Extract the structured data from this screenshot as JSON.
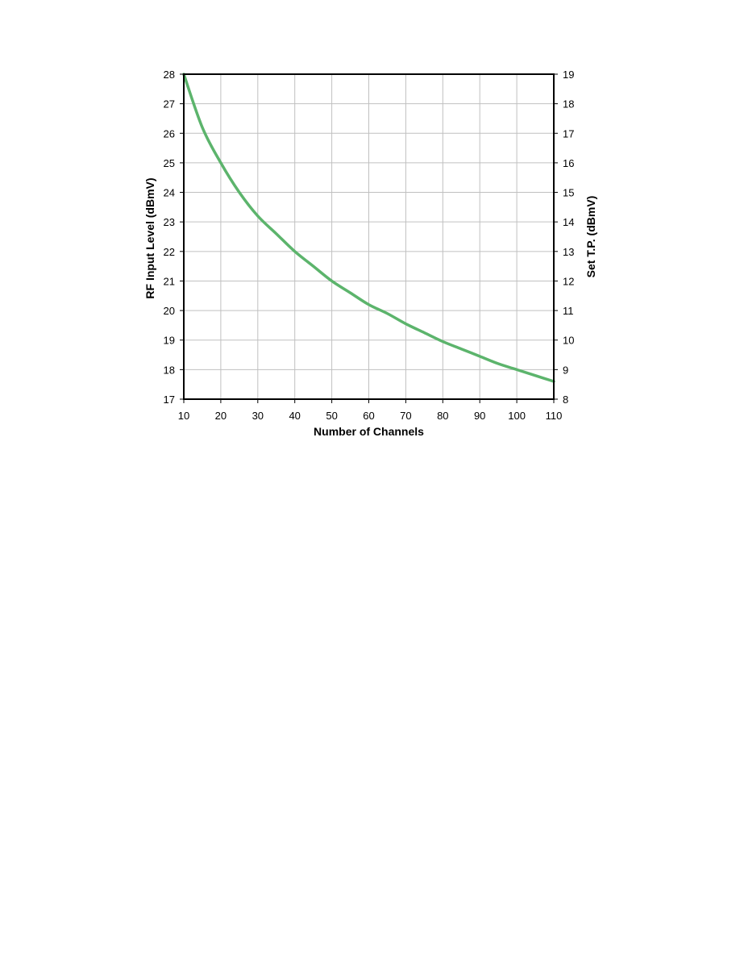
{
  "chart_data": {
    "type": "line",
    "title": "",
    "xlabel": "Number of Channels",
    "ylabel": "RF Input Level (dBmV)",
    "y2label": "Set T.P. (dBmV)",
    "xlim": [
      10,
      110
    ],
    "ylim": [
      17,
      28
    ],
    "y2lim": [
      8,
      19
    ],
    "x_ticks": [
      10,
      20,
      30,
      40,
      50,
      60,
      70,
      80,
      90,
      100,
      110
    ],
    "y_ticks": [
      17,
      18,
      19,
      20,
      21,
      22,
      23,
      24,
      25,
      26,
      27,
      28
    ],
    "y2_ticks": [
      8,
      9,
      10,
      11,
      12,
      13,
      14,
      15,
      16,
      17,
      18,
      19
    ],
    "grid": true,
    "line_color": "#5cb46c",
    "series": [
      {
        "x": [
          10,
          15,
          20,
          25,
          30,
          35,
          40,
          45,
          50,
          55,
          60,
          65,
          70,
          75,
          80,
          85,
          90,
          95,
          100,
          105,
          110
        ],
        "values": [
          28.0,
          26.2,
          25.0,
          24.0,
          23.2,
          22.6,
          22.0,
          21.5,
          21.0,
          20.6,
          20.2,
          19.9,
          19.55,
          19.25,
          18.95,
          18.7,
          18.45,
          18.2,
          18.0,
          17.8,
          17.6
        ]
      }
    ]
  }
}
